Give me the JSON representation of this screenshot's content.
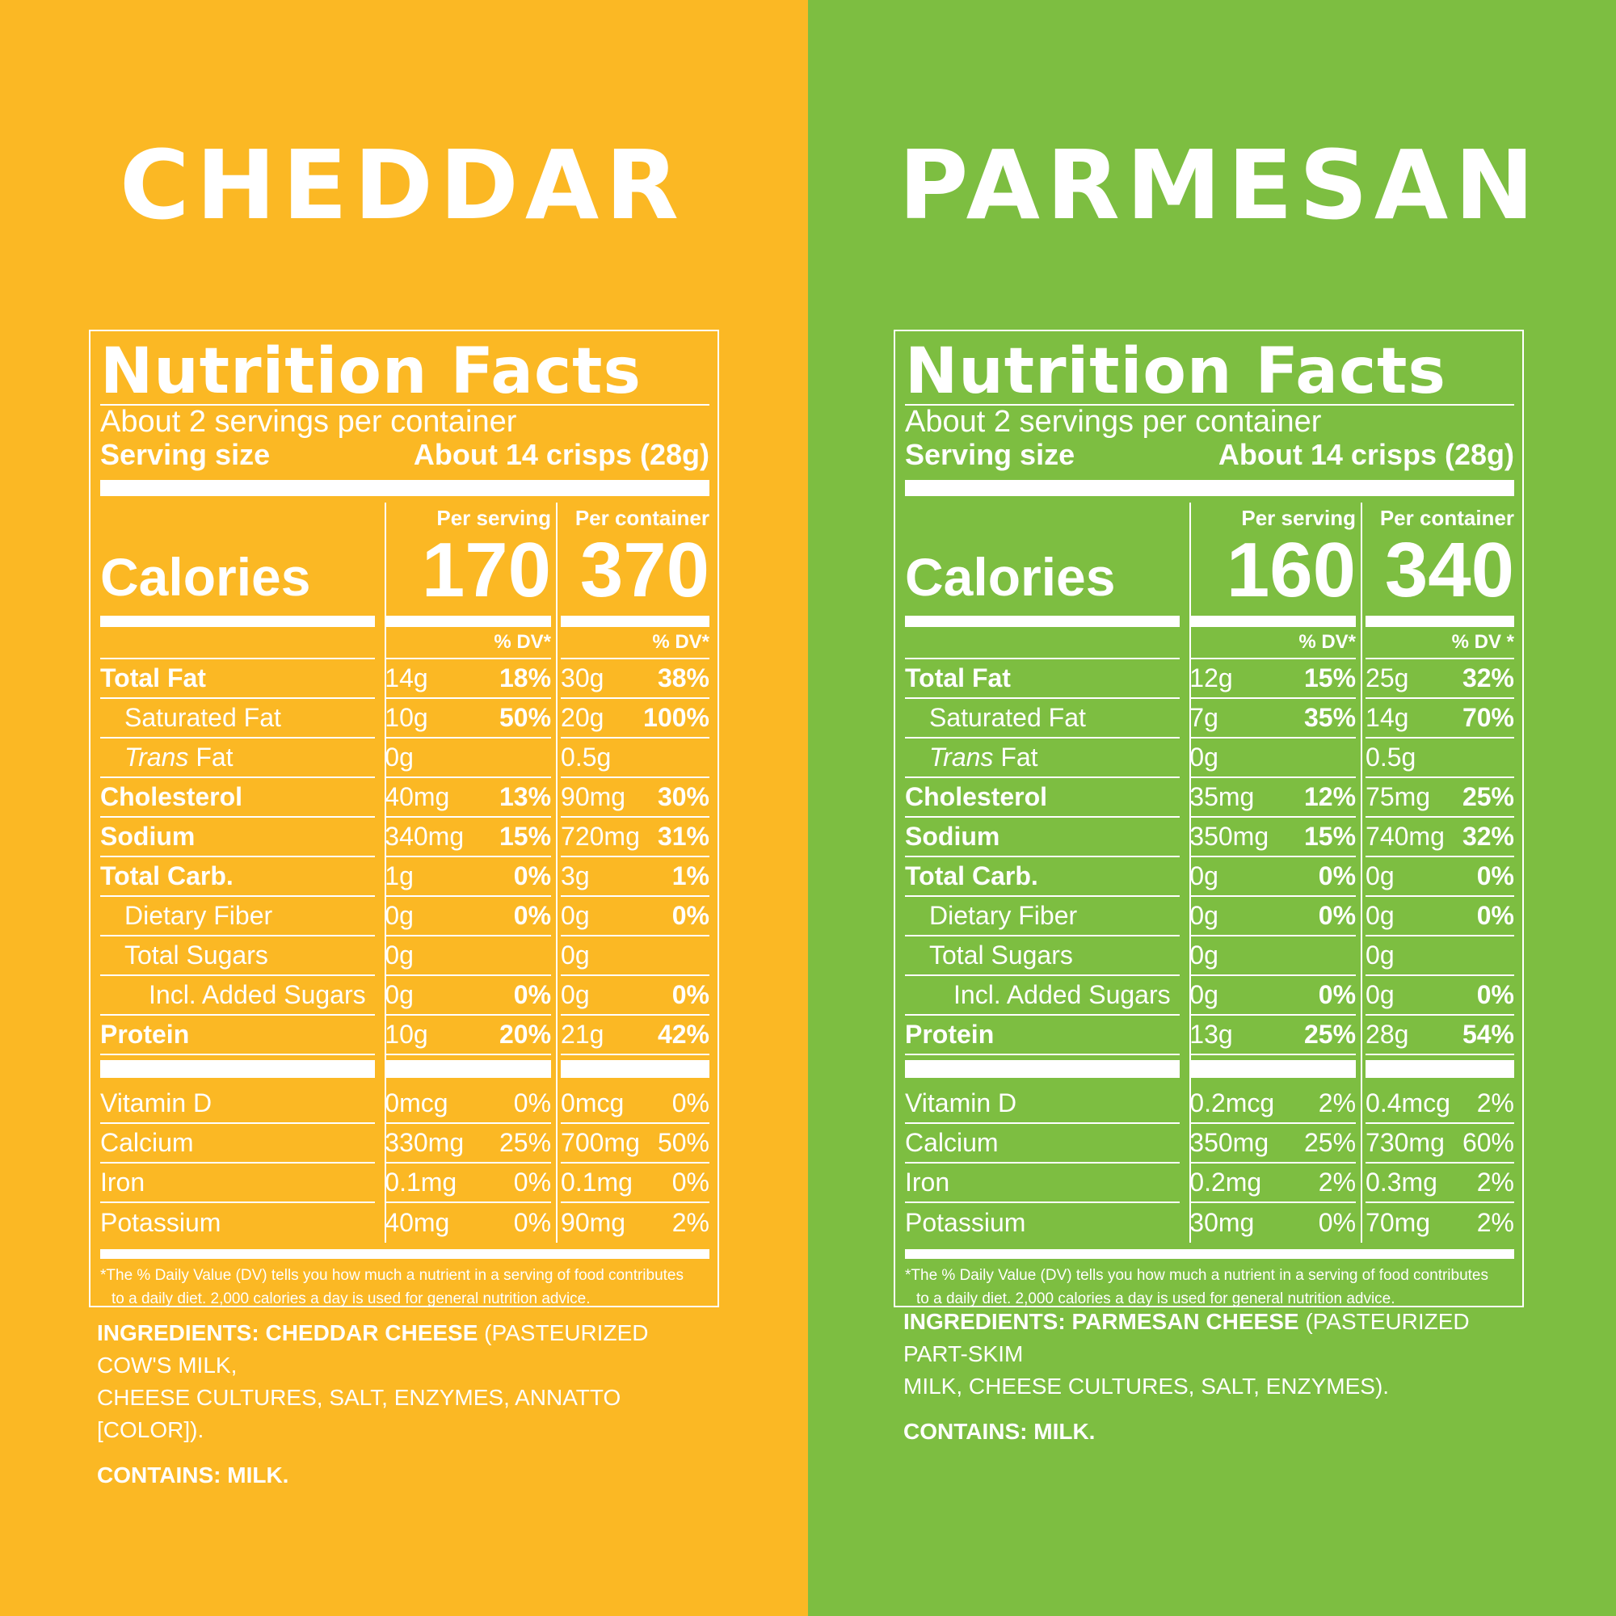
{
  "colors": {
    "cheddar_bg": "#FBB824",
    "parmesan_bg": "#7DBE41",
    "text": "#FFFFFF"
  },
  "panels": [
    {
      "id": "cheddar",
      "product": "CHEDDAR",
      "nf_title": "Nutrition Facts",
      "servings": "About 2 servings per container",
      "serving_size_label": "Serving size",
      "serving_size_value": "About 14 crisps (28g)",
      "calories_label": "Calories",
      "per_serving_label": "Per serving",
      "per_container_label": "Per container",
      "cal_serving": "170",
      "cal_container": "370",
      "dv_label_serv": "% DV*",
      "dv_label_cont": "% DV*",
      "rows": [
        {
          "name": "Total Fat",
          "s_amt": "14g",
          "s_dv": "18%",
          "c_amt": "30g",
          "c_dv": "38%"
        },
        {
          "name": "Saturated Fat",
          "s_amt": "10g",
          "s_dv": "50%",
          "c_amt": "20g",
          "c_dv": "100%"
        },
        {
          "name": "Trans",
          "name2": " Fat",
          "s_amt": "0g",
          "s_dv": "",
          "c_amt": "0.5g",
          "c_dv": ""
        },
        {
          "name": "Cholesterol",
          "s_amt": "40mg",
          "s_dv": "13%",
          "c_amt": "90mg",
          "c_dv": "30%"
        },
        {
          "name": "Sodium",
          "s_amt": "340mg",
          "s_dv": "15%",
          "c_amt": "720mg",
          "c_dv": "31%"
        },
        {
          "name": "Total Carb.",
          "s_amt": "1g",
          "s_dv": "0%",
          "c_amt": "3g",
          "c_dv": "1%"
        },
        {
          "name": "Dietary Fiber",
          "s_amt": "0g",
          "s_dv": "0%",
          "c_amt": "0g",
          "c_dv": "0%"
        },
        {
          "name": "Total Sugars",
          "s_amt": "0g",
          "s_dv": "",
          "c_amt": "0g",
          "c_dv": ""
        },
        {
          "name": "Incl. Added Sugars",
          "s_amt": "0g",
          "s_dv": "0%",
          "c_amt": "0g",
          "c_dv": "0%"
        },
        {
          "name": "Protein",
          "s_amt": "10g",
          "s_dv": "20%",
          "c_amt": "21g",
          "c_dv": "42%"
        }
      ],
      "vitamins": [
        {
          "name": "Vitamin D",
          "s_amt": "0mcg",
          "s_dv": "0%",
          "c_amt": "0mcg",
          "c_dv": "0%"
        },
        {
          "name": "Calcium",
          "s_amt": "330mg",
          "s_dv": "25%",
          "c_amt": "700mg",
          "c_dv": "50%"
        },
        {
          "name": "Iron",
          "s_amt": "0.1mg",
          "s_dv": "0%",
          "c_amt": "0.1mg",
          "c_dv": "0%"
        },
        {
          "name": "Potassium",
          "s_amt": "40mg",
          "s_dv": "0%",
          "c_amt": "90mg",
          "c_dv": "2%"
        }
      ],
      "footnote_1": "*The % Daily Value (DV) tells you how much a nutrient in a serving of food contributes",
      "footnote_2": "to a daily diet. 2,000 calories a day is used for general nutrition advice.",
      "ingredients_label": "INGREDIENTS:  ",
      "ingredients_main": "CHEDDAR CHEESE",
      "ingredients_rest_1": " (PASTEURIZED COW'S MILK,",
      "ingredients_rest_2": "CHEESE CULTURES, SALT, ENZYMES, ANNATTO [COLOR]).",
      "contains": "CONTAINS: MILK."
    },
    {
      "id": "parmesan",
      "product": "PARMESAN",
      "nf_title": "Nutrition Facts",
      "servings": "About 2 servings per container",
      "serving_size_label": "Serving size",
      "serving_size_value": "About 14 crisps (28g)",
      "calories_label": "Calories",
      "per_serving_label": "Per serving",
      "per_container_label": "Per container",
      "cal_serving": "160",
      "cal_container": "340",
      "dv_label_serv": "% DV*",
      "dv_label_cont": "% DV *",
      "rows": [
        {
          "name": "Total Fat",
          "s_amt": "12g",
          "s_dv": "15%",
          "c_amt": "25g",
          "c_dv": "32%"
        },
        {
          "name": "Saturated Fat",
          "s_amt": "7g",
          "s_dv": "35%",
          "c_amt": "14g",
          "c_dv": "70%"
        },
        {
          "name": "Trans",
          "name2": " Fat",
          "s_amt": "0g",
          "s_dv": "",
          "c_amt": "0.5g",
          "c_dv": ""
        },
        {
          "name": "Cholesterol",
          "s_amt": "35mg",
          "s_dv": "12%",
          "c_amt": "75mg",
          "c_dv": "25%"
        },
        {
          "name": "Sodium",
          "s_amt": "350mg",
          "s_dv": "15%",
          "c_amt": "740mg",
          "c_dv": "32%"
        },
        {
          "name": "Total Carb.",
          "s_amt": "0g",
          "s_dv": "0%",
          "c_amt": "0g",
          "c_dv": "0%"
        },
        {
          "name": "Dietary Fiber",
          "s_amt": "0g",
          "s_dv": "0%",
          "c_amt": "0g",
          "c_dv": "0%"
        },
        {
          "name": "Total Sugars",
          "s_amt": "0g",
          "s_dv": "",
          "c_amt": "0g",
          "c_dv": ""
        },
        {
          "name": "Incl. Added Sugars",
          "s_amt": "0g",
          "s_dv": "0%",
          "c_amt": "0g",
          "c_dv": "0%"
        },
        {
          "name": "Protein",
          "s_amt": "13g",
          "s_dv": "25%",
          "c_amt": "28g",
          "c_dv": "54%"
        }
      ],
      "vitamins": [
        {
          "name": "Vitamin D",
          "s_amt": "0.2mcg",
          "s_dv": "2%",
          "c_amt": "0.4mcg",
          "c_dv": "2%"
        },
        {
          "name": "Calcium",
          "s_amt": "350mg",
          "s_dv": "25%",
          "c_amt": "730mg",
          "c_dv": "60%"
        },
        {
          "name": "Iron",
          "s_amt": "0.2mg",
          "s_dv": "2%",
          "c_amt": "0.3mg",
          "c_dv": "2%"
        },
        {
          "name": "Potassium",
          "s_amt": "30mg",
          "s_dv": "0%",
          "c_amt": "70mg",
          "c_dv": "2%"
        }
      ],
      "footnote_1": "*The % Daily Value (DV) tells you how much a nutrient in a serving of food contributes",
      "footnote_2": "to a daily diet. 2,000 calories a day is used for general nutrition advice.",
      "ingredients_label": "INGREDIENTS: ",
      "ingredients_main": "PARMESAN CHEESE",
      "ingredients_rest_1": " (PASTEURIZED PART-SKIM",
      "ingredients_rest_2": "MILK, CHEESE CULTURES, SALT,  ENZYMES).",
      "contains": "CONTAINS: MILK."
    }
  ]
}
